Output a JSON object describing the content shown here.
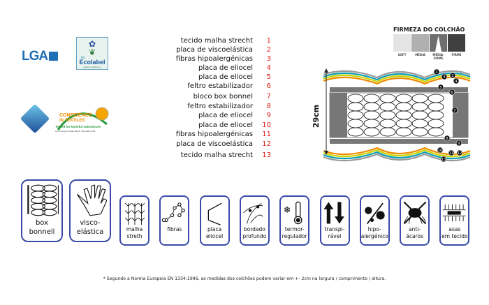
{
  "logos": {
    "lga": "LGA",
    "ecolabel": {
      "eu": "EU",
      "name": "Ecolabel",
      "url": "www.ecolabel.eu"
    },
    "oeko": {
      "line1": "CONFIDENCE",
      "line2": "IN TEXTILES",
      "line3": "Tested for harmful substances",
      "line4": "according to Oeko-Tex® Standard 100"
    }
  },
  "layers": [
    {
      "label": "tecido malha strecht",
      "num": "1"
    },
    {
      "label": "placa de viscoelástica",
      "num": "2"
    },
    {
      "label": "fibras hipoalergénicas",
      "num": "3"
    },
    {
      "label": "placa de eliocel",
      "num": "4"
    },
    {
      "label": "placa de eliocel",
      "num": "5"
    },
    {
      "label": "feltro estabilizador",
      "num": "6"
    },
    {
      "label": "bloco box bonnel",
      "num": "7"
    },
    {
      "label": "feltro estabilizador",
      "num": "8"
    },
    {
      "label": "placa de eliocel",
      "num": "9"
    },
    {
      "label": "placa de eliocel",
      "num": "10"
    },
    {
      "label": "fibras hipoalergénicas",
      "num": "11"
    },
    {
      "label": "placa de viscoelástica",
      "num": "12"
    },
    {
      "label": "tecido malha strecht",
      "num": "13"
    }
  ],
  "firmness": {
    "title": "FIRMEZA DO COLCHÃO",
    "levels": [
      "SOFT",
      "MÉDIA",
      "MÉDIA-FIRME",
      "FIRME"
    ],
    "selected": "MÉDIA-FIRME",
    "colors": [
      "#e4e4e4",
      "#b0b0b0",
      "#6e6e6e",
      "#404040"
    ]
  },
  "diagram": {
    "height_label": "29cm",
    "wave_colors": [
      "#9a9a9a",
      "#0e9bb0",
      "#c8d400",
      "#f08a00"
    ]
  },
  "features": [
    {
      "icon": "box-bonnell-icon",
      "label": "box\nbonnell",
      "big": true
    },
    {
      "icon": "hand-icon",
      "label": "visco-\nelástica",
      "big": true
    },
    {
      "icon": "mesh-icon",
      "label": "malha\nstreth"
    },
    {
      "icon": "fibers-icon",
      "label": "fibras"
    },
    {
      "icon": "plate-icon",
      "label": "placa\neliocel"
    },
    {
      "icon": "quilting-icon",
      "label": "bordado\nprofundo"
    },
    {
      "icon": "thermometer-icon",
      "label": "termor-\nregulador"
    },
    {
      "icon": "breathable-arrows-icon",
      "label": "transpi-\nrável"
    },
    {
      "icon": "hypoallergenic-icon",
      "label": "hipo-\nalergénico"
    },
    {
      "icon": "anti-mite-icon",
      "label": "anti-\nácaros"
    },
    {
      "icon": "handles-icon",
      "label": "asas\nem tecido"
    }
  ],
  "footnote": "* Segundo a Norma Europeia EN 1334:1996, as medidas dos colchões podem variar em +- 2cm na largura / comprimento / altura."
}
